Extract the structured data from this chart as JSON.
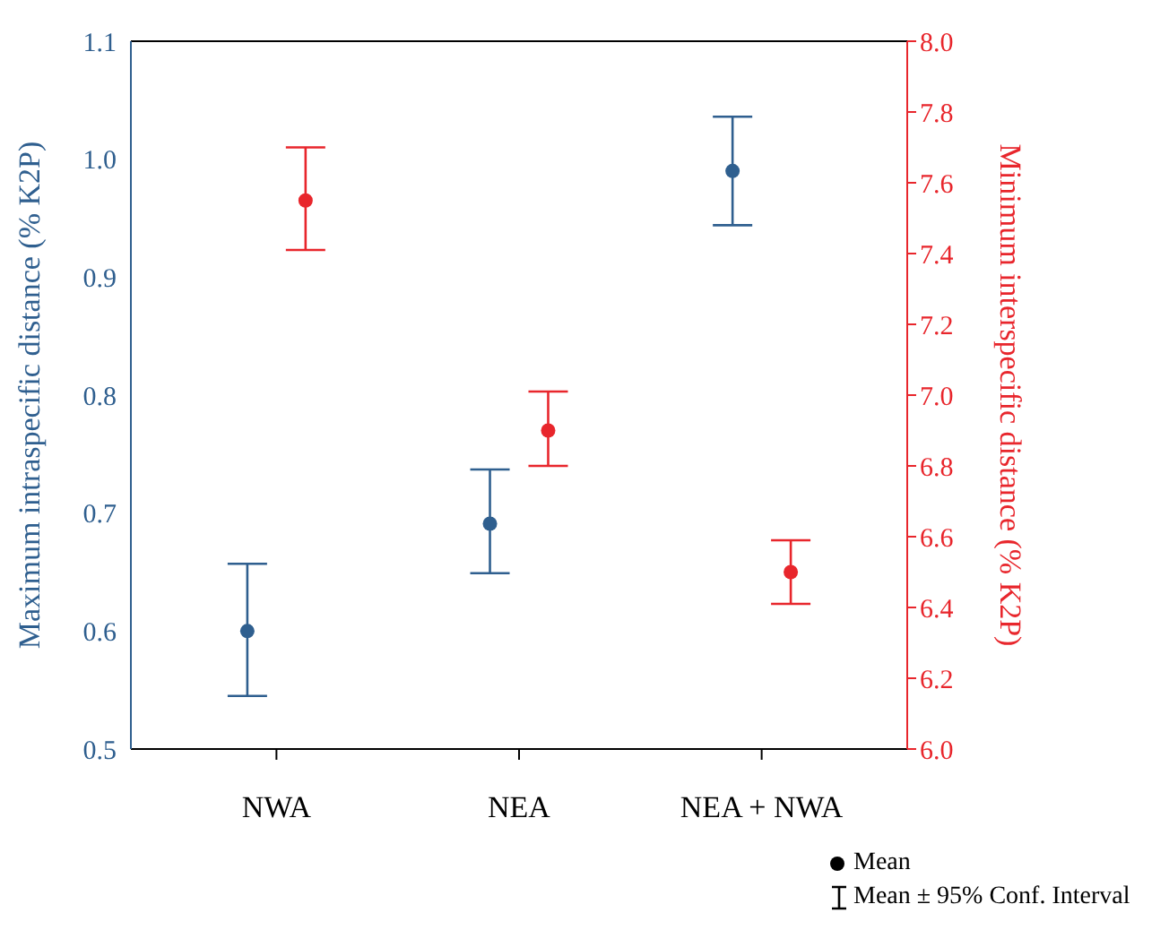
{
  "chart_data": {
    "type": "scatter",
    "categories": [
      "NWA",
      "NEA",
      "NEA + NWA"
    ],
    "ylabel": "Maximum intraspecific distance (% K2P)",
    "y2label": "Minimum interspecific distance  (% K2P)",
    "ylim": [
      0.5,
      1.1
    ],
    "yticks": [
      0.5,
      0.6,
      0.7,
      0.8,
      0.9,
      {
        "value": 1,
        "label": "1.0"
      },
      1.1
    ],
    "y2lim": [
      6,
      8
    ],
    "y2ticks": [
      {
        "value": 6,
        "label": "6.0"
      },
      6.2,
      6.4,
      6.6,
      6.8,
      {
        "value": 7,
        "label": "7.0"
      },
      7.2,
      7.4,
      7.6,
      7.8,
      {
        "value": 8,
        "label": "8.0"
      }
    ],
    "series": [
      {
        "color": "#2f5f8f",
        "values": [
          0.6,
          0.691,
          0.99
        ],
        "errors": [
          [
            0.545,
            0.657
          ],
          [
            0.649,
            0.737
          ],
          [
            0.944,
            1.036
          ]
        ]
      },
      {
        "color": "#e8262c",
        "axis": "y2",
        "values": [
          7.55,
          6.9,
          6.5
        ],
        "errors": [
          [
            7.41,
            7.7
          ],
          [
            6.8,
            7.01
          ],
          [
            6.41,
            6.59
          ]
        ]
      }
    ],
    "marker": "circle",
    "annotations": [
      "Mean",
      "Mean ± 95% Conf. Interval"
    ]
  }
}
